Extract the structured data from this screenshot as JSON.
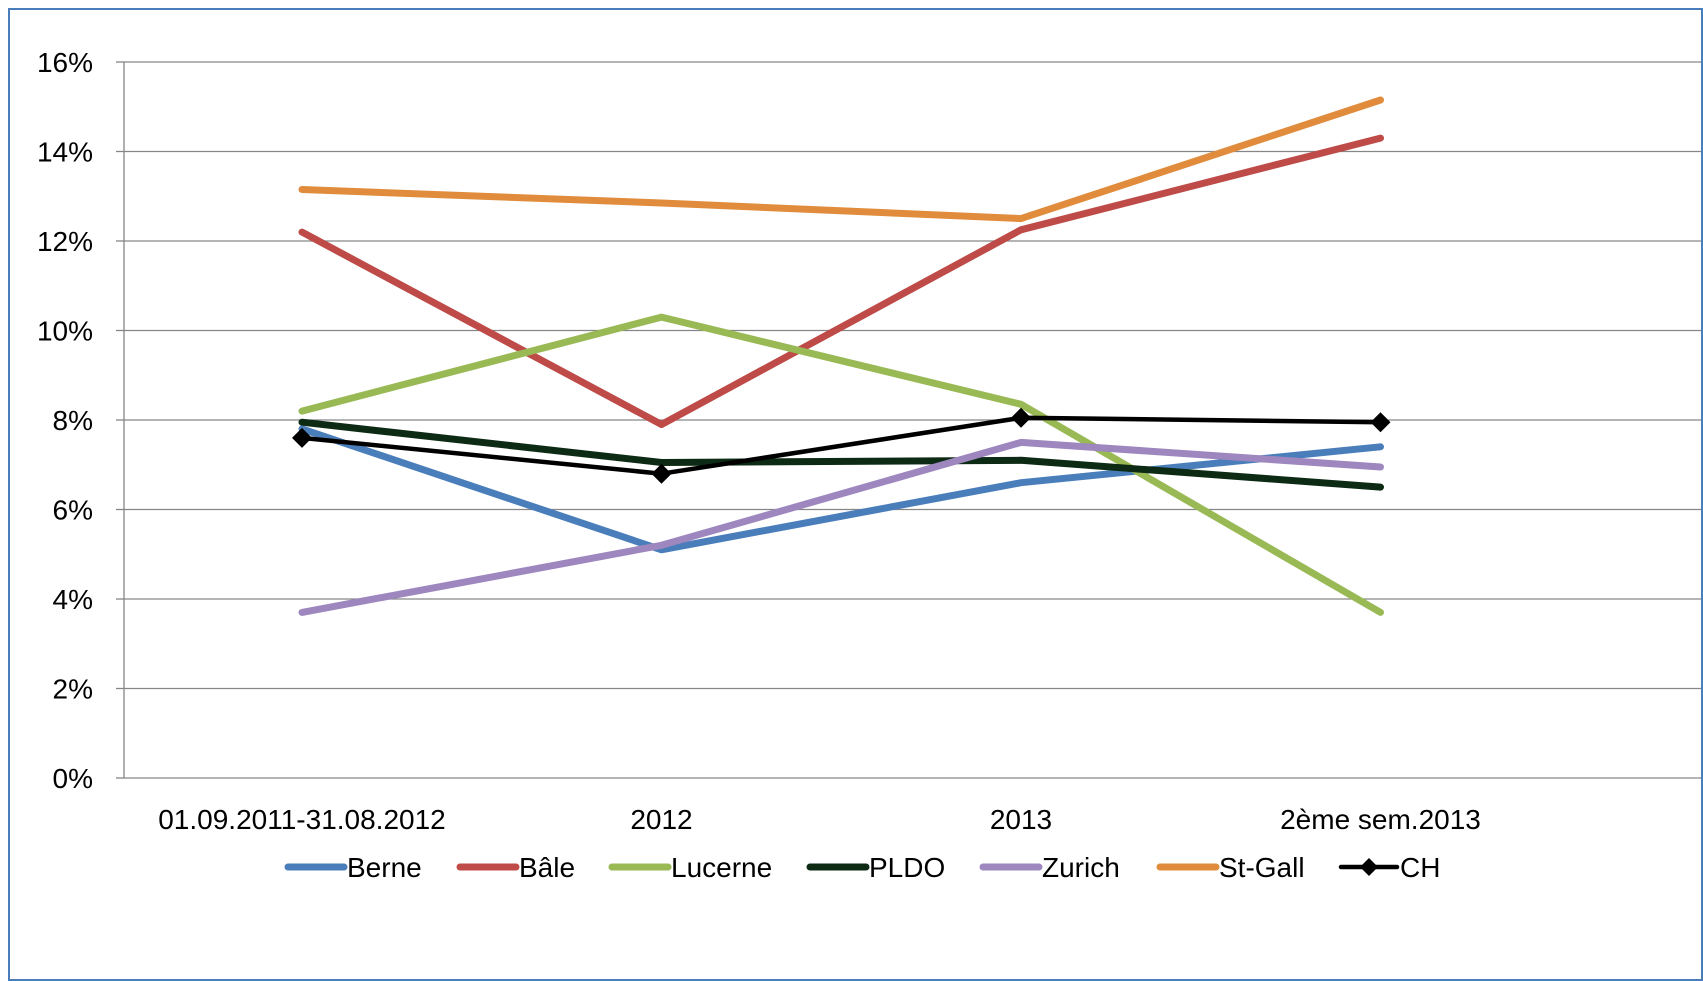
{
  "chart_data": {
    "type": "line",
    "title": "",
    "xlabel": "",
    "ylabel": "",
    "categories": [
      "01.09.2011-31.08.2012",
      "2012",
      "2013",
      "2ème sem.2013"
    ],
    "ylim": [
      0,
      16
    ],
    "yticks": [
      0,
      2,
      4,
      6,
      8,
      10,
      12,
      14,
      16
    ],
    "ytick_labels": [
      "0%",
      "2%",
      "4%",
      "6%",
      "8%",
      "10%",
      "12%",
      "14%",
      "16%"
    ],
    "grid": "horizontal",
    "legend_position": "bottom",
    "series": [
      {
        "name": "Berne",
        "color": "#4a7ebb",
        "marker": "none",
        "values": [
          7.8,
          5.1,
          6.6,
          7.4
        ]
      },
      {
        "name": "Bâle",
        "color": "#be4b48",
        "marker": "none",
        "values": [
          12.2,
          7.9,
          12.25,
          14.3
        ]
      },
      {
        "name": "Lucerne",
        "color": "#98b954",
        "marker": "none",
        "values": [
          8.2,
          10.3,
          8.35,
          3.7
        ]
      },
      {
        "name": "PLDO",
        "color": "#0d2a14",
        "marker": "none",
        "values": [
          7.95,
          7.05,
          7.1,
          6.5
        ]
      },
      {
        "name": "Zurich",
        "color": "#9d87be",
        "marker": "none",
        "values": [
          3.7,
          5.2,
          7.5,
          6.95
        ]
      },
      {
        "name": "St-Gall",
        "color": "#e18c3c",
        "marker": "none",
        "values": [
          13.15,
          12.85,
          12.5,
          15.15
        ]
      },
      {
        "name": "CH",
        "color": "#000000",
        "marker": "diamond",
        "values": [
          7.6,
          6.8,
          8.05,
          7.95
        ]
      }
    ]
  }
}
